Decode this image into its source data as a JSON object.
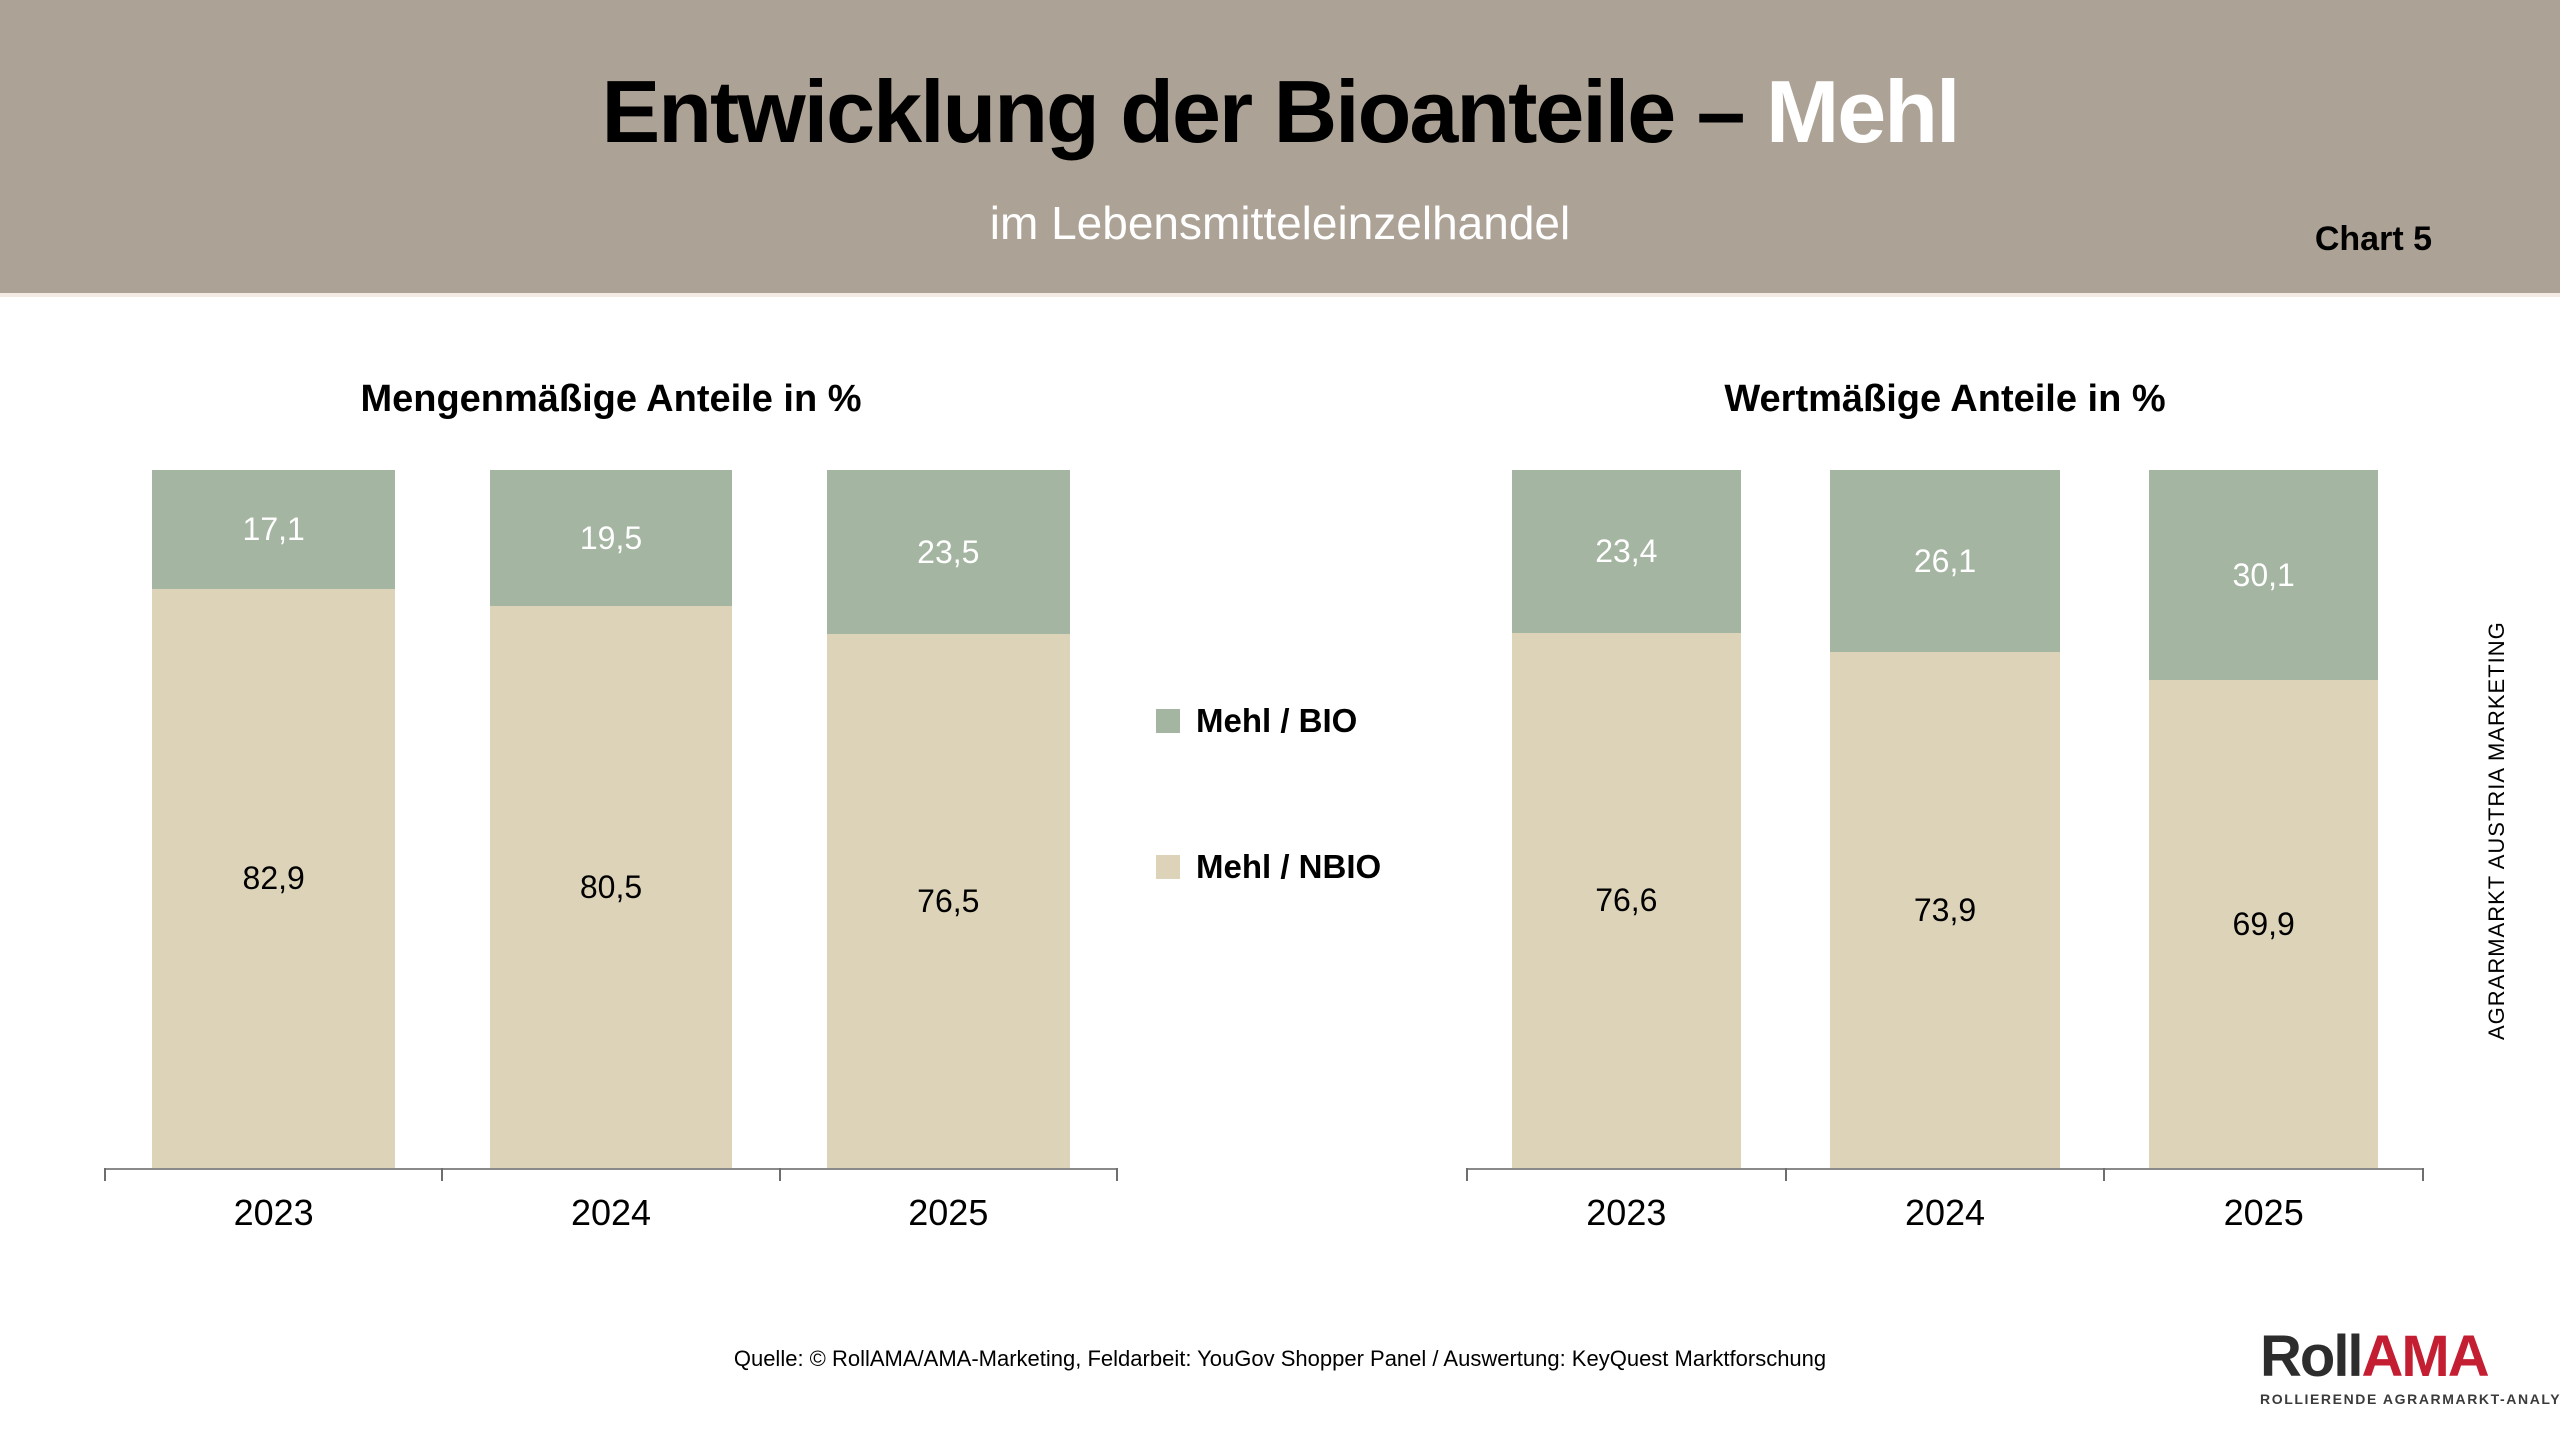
{
  "header": {
    "title_black": "Entwicklung der Bioanteile – ",
    "title_white": "Mehl",
    "subtitle": "im Lebensmitteleinzelhandel",
    "chart_label": "Chart 5"
  },
  "colors": {
    "header_bg": "#ACA295",
    "bio": "#A4B5A1",
    "nbio": "#DDD3B8",
    "axis": "#8a8a8a",
    "logo_red": "#C41E33",
    "logo_dark": "#2d2d2d"
  },
  "legend": {
    "items": [
      {
        "label": "Mehl / BIO",
        "color_key": "bio"
      },
      {
        "label": "Mehl / NBIO",
        "color_key": "nbio"
      }
    ]
  },
  "chart_data": [
    {
      "type": "bar",
      "subtype": "stacked-percentage",
      "title": "Mengenmäßige Anteile in %",
      "categories": [
        "2023",
        "2024",
        "2025"
      ],
      "series": [
        {
          "name": "Mehl / BIO",
          "color_key": "bio",
          "label_color": "#ffffff",
          "values": [
            17.1,
            19.5,
            23.5
          ]
        },
        {
          "name": "Mehl / NBIO",
          "color_key": "nbio",
          "label_color": "#000000",
          "values": [
            82.9,
            80.5,
            76.5
          ]
        }
      ],
      "ylim": [
        0,
        100
      ],
      "grid": false,
      "legend_position": "center-between-charts"
    },
    {
      "type": "bar",
      "subtype": "stacked-percentage",
      "title": "Wertmäßige Anteile in %",
      "categories": [
        "2023",
        "2024",
        "2025"
      ],
      "series": [
        {
          "name": "Mehl / BIO",
          "color_key": "bio",
          "label_color": "#ffffff",
          "values": [
            23.4,
            26.1,
            30.1
          ]
        },
        {
          "name": "Mehl / NBIO",
          "color_key": "nbio",
          "label_color": "#000000",
          "values": [
            76.6,
            73.9,
            69.9
          ]
        }
      ],
      "ylim": [
        0,
        100
      ],
      "grid": false,
      "legend_position": "center-between-charts"
    }
  ],
  "side_note": "AGRARMARKT AUSTRIA MARKETING",
  "footer": {
    "source": "Quelle: © RollAMA/AMA-Marketing, Feldarbeit: YouGov Shopper Panel / Auswertung: KeyQuest Marktforschung"
  },
  "logo": {
    "roll": "Roll",
    "ama": "AMA",
    "tagline": "ROLLIERENDE AGRARMARKT-ANALYSE"
  }
}
